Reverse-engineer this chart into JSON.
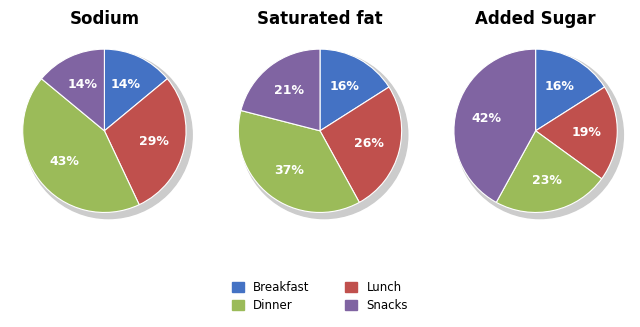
{
  "charts": [
    {
      "title": "Sodium",
      "values": [
        14,
        29,
        43,
        14
      ],
      "startangle": 90
    },
    {
      "title": "Saturated fat",
      "values": [
        16,
        26,
        37,
        21
      ],
      "startangle": 90
    },
    {
      "title": "Added Sugar",
      "values": [
        16,
        19,
        23,
        42
      ],
      "startangle": 90
    }
  ],
  "colors": [
    "#4472C4",
    "#C0504D",
    "#9BBB59",
    "#8064A2"
  ],
  "legend_labels": [
    "Breakfast",
    "Lunch",
    "Dinner",
    "Snacks"
  ],
  "background_color": "#FFFFFF",
  "title_fontsize": 12,
  "label_fontsize": 9,
  "shadow_color": "#CCCCCC"
}
